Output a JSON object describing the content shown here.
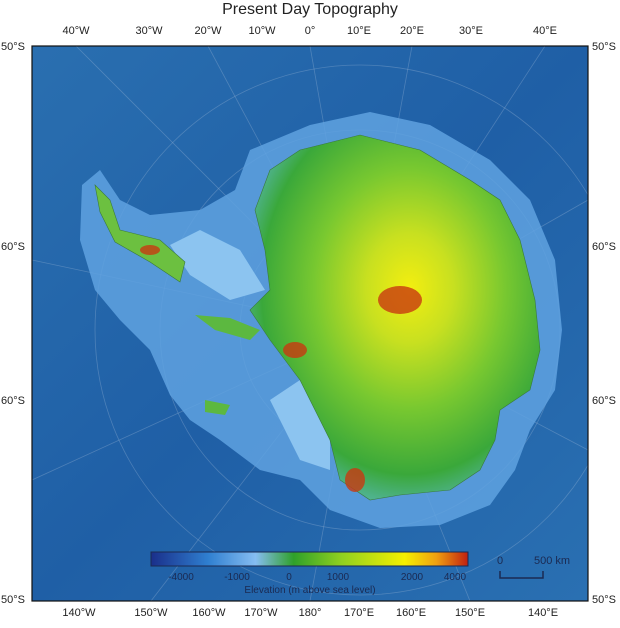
{
  "title": "Present Day Topography",
  "top_longitudes": [
    "40°W",
    "30°W",
    "20°W",
    "10°W",
    "0°",
    "10°E",
    "20°E",
    "30°E",
    "40°E"
  ],
  "bottom_longitudes": [
    "140°W",
    "150°W",
    "160°W",
    "170°W",
    "180°",
    "170°E",
    "160°E",
    "150°E",
    "140°E"
  ],
  "left_latitudes": [
    "50°S",
    "60°S",
    "60°S",
    "50°S"
  ],
  "right_latitudes": [
    "50°S",
    "60°S",
    "60°S",
    "50°S"
  ],
  "colorbar": {
    "label": "Elevation (m above sea level)",
    "ticks": [
      "-4000",
      "-1000",
      "0",
      "1000",
      "2000",
      "4000"
    ],
    "colors": [
      "#1a2f8a",
      "#2f7fd0",
      "#7fb8f0",
      "#2fa02a",
      "#8fd020",
      "#f5f000",
      "#f0a010",
      "#c02010"
    ]
  },
  "scale_bar": {
    "start": "0",
    "end": "500 km"
  }
}
